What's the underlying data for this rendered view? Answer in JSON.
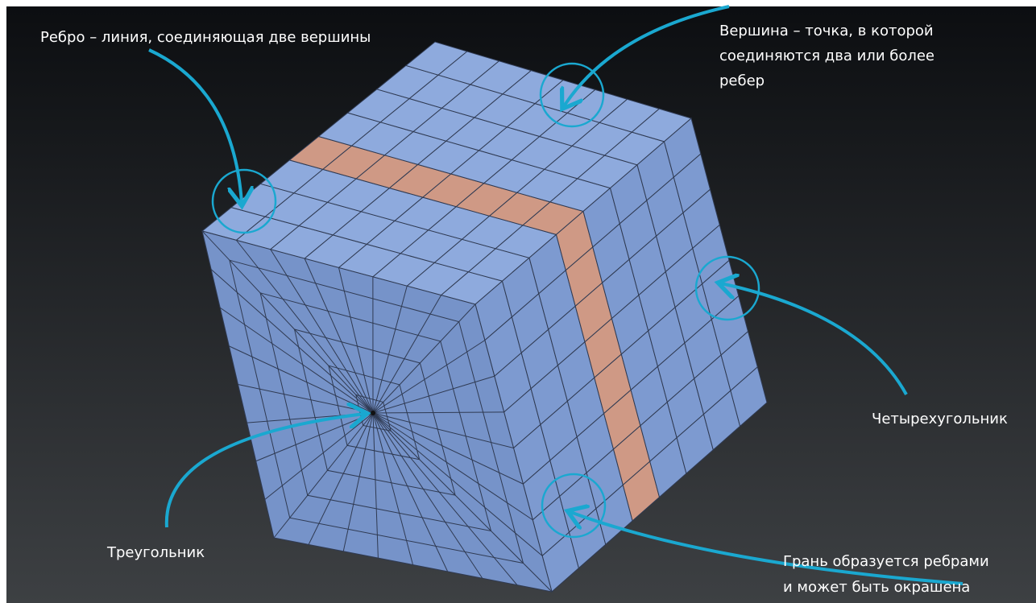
{
  "annotations": [
    {
      "lines": [
        "Ребро – линия, соединяющая две вершины"
      ]
    },
    {
      "lines": [
        "Вершина – точка, в которой",
        "соединяются два или более",
        "ребер"
      ]
    },
    {
      "lines": [
        "Четырехугольник"
      ]
    },
    {
      "lines": [
        "Треугольник"
      ]
    },
    {
      "lines": [
        "Грань образуется ребрами",
        "и может быть окрашена"
      ]
    }
  ]
}
